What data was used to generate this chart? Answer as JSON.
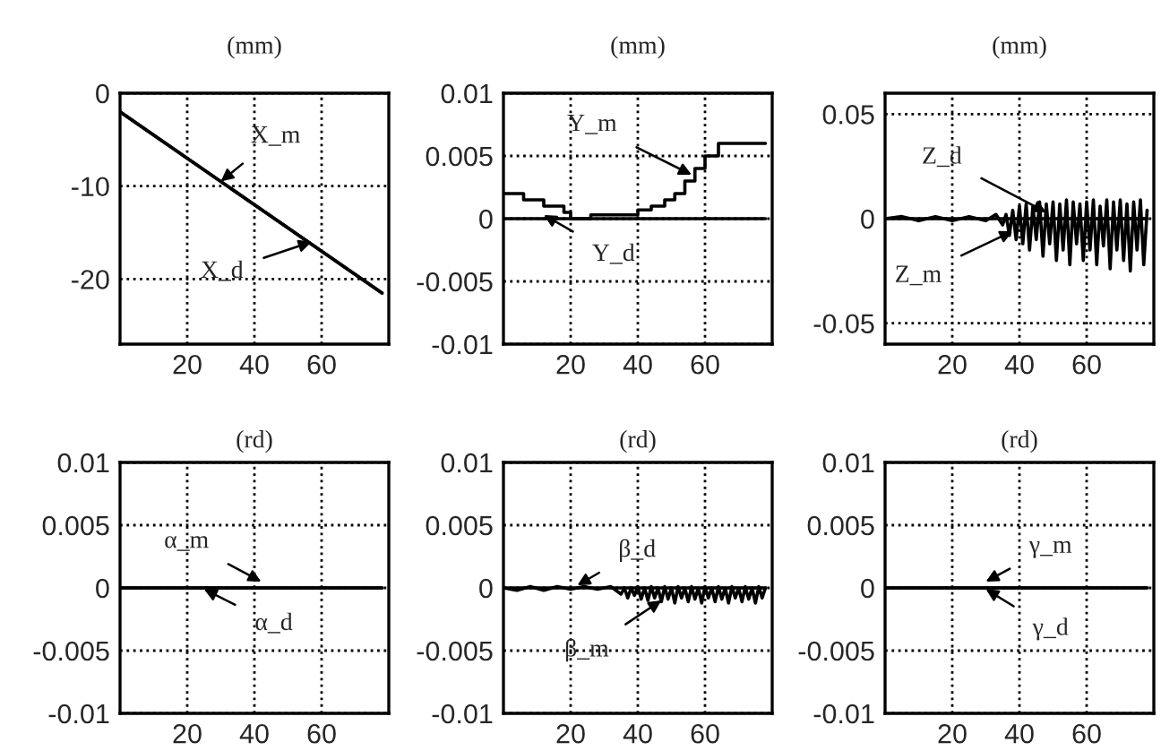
{
  "chart_data": [
    {
      "type": "line",
      "title": "(mm)",
      "xlim": [
        0,
        80
      ],
      "xticks": [
        20,
        40,
        60
      ],
      "ylim": [
        -27,
        0
      ],
      "yticks": [
        0,
        -10,
        -20
      ],
      "grid": true,
      "series": [
        {
          "color": "#000000",
          "x": [
            0,
            78
          ],
          "values": [
            -2,
            -21.5
          ]
        },
        {
          "color": "#000000",
          "x": [
            0,
            78
          ],
          "values": [
            -2,
            -21.5
          ]
        }
      ],
      "annotations": [
        {
          "text": "X_m",
          "x": 30,
          "y": -9.5
        },
        {
          "text": "X_d",
          "x": 57,
          "y": -16
        }
      ]
    },
    {
      "type": "line",
      "title": "(mm)",
      "xlim": [
        0,
        80
      ],
      "xticks": [
        20,
        40,
        60
      ],
      "ylim": [
        -0.01,
        0.01
      ],
      "yticks": [
        0.01,
        0.005,
        0,
        -0.005,
        -0.01
      ],
      "grid": true,
      "series": [
        {
          "color": "#000000",
          "x": [
            0,
            6,
            6,
            12,
            12,
            18,
            18,
            20,
            20,
            26,
            26,
            40,
            40,
            44,
            44,
            48,
            48,
            51,
            51,
            54,
            54,
            57,
            57,
            60,
            60,
            64,
            64,
            78
          ],
          "values": [
            0.002,
            0.002,
            0.0015,
            0.0015,
            0.001,
            0.001,
            0.0005,
            0.0005,
            0,
            0,
            0.0003,
            0.0003,
            0.0007,
            0.0007,
            0.001,
            0.001,
            0.0015,
            0.0015,
            0.002,
            0.002,
            0.003,
            0.003,
            0.004,
            0.004,
            0.005,
            0.005,
            0.006,
            0.006
          ]
        },
        {
          "color": "#000000",
          "x": [
            0,
            78
          ],
          "values": [
            0,
            0
          ]
        }
      ],
      "annotations": [
        {
          "text": "Y_m",
          "x": 56,
          "y": 0.0035
        },
        {
          "text": "Y_d",
          "x": 12,
          "y": 0.0003
        }
      ]
    },
    {
      "type": "line",
      "title": "(mm)",
      "xlim": [
        0,
        80
      ],
      "xticks": [
        20,
        40,
        60
      ],
      "ylim": [
        -0.06,
        0.06
      ],
      "yticks": [
        0.05,
        0,
        -0.05
      ],
      "grid": true,
      "series": [
        {
          "color": "#000000",
          "x": [
            0,
            5,
            10,
            15,
            20,
            25,
            30,
            33,
            35,
            36,
            37,
            38,
            39,
            40,
            41,
            42,
            43,
            44,
            45,
            46,
            47,
            48,
            49,
            50,
            51,
            52,
            53,
            54,
            55,
            56,
            57,
            58,
            59,
            60,
            61,
            62,
            63,
            64,
            65,
            66,
            67,
            68,
            69,
            70,
            71,
            72,
            73,
            74,
            75,
            76,
            77,
            78
          ],
          "values": [
            0,
            0.001,
            -0.001,
            0.001,
            -0.001,
            0.001,
            -0.001,
            0.002,
            -0.003,
            0.002,
            -0.008,
            0.004,
            -0.01,
            0.006,
            -0.012,
            0.007,
            -0.015,
            0.006,
            -0.01,
            0.008,
            -0.018,
            0.007,
            -0.012,
            0.008,
            -0.02,
            0.007,
            -0.015,
            0.009,
            -0.022,
            0.008,
            -0.012,
            0.007,
            -0.02,
            0.008,
            -0.015,
            0.009,
            -0.022,
            0.006,
            -0.013,
            0.009,
            -0.024,
            0.008,
            -0.015,
            0.009,
            -0.02,
            0.007,
            -0.025,
            0.008,
            -0.015,
            0.009,
            -0.022,
            0.004
          ]
        },
        {
          "color": "#000000",
          "x": [
            0,
            78
          ],
          "values": [
            0,
            0
          ]
        }
      ],
      "annotations": [
        {
          "text": "Z_d",
          "x": 48,
          "y": 0.003
        },
        {
          "text": "Z_m",
          "x": 38,
          "y": -0.006
        }
      ]
    },
    {
      "type": "line",
      "title": "(rd)",
      "xlim": [
        0,
        80
      ],
      "xticks": [
        20,
        40,
        60
      ],
      "ylim": [
        -0.01,
        0.01
      ],
      "yticks": [
        0.01,
        0.005,
        0,
        -0.005,
        -0.01
      ],
      "grid": true,
      "series": [
        {
          "color": "#000000",
          "x": [
            0,
            78
          ],
          "values": [
            0,
            0
          ]
        },
        {
          "color": "#000000",
          "x": [
            0,
            78
          ],
          "values": [
            0,
            0
          ]
        }
      ],
      "annotations": [
        {
          "text": "α_m",
          "x": 42,
          "y": 0.0005
        },
        {
          "text": "α_d",
          "x": 25,
          "y": -0.0001
        }
      ]
    },
    {
      "type": "line",
      "title": "(rd)",
      "xlim": [
        0,
        80
      ],
      "xticks": [
        20,
        40,
        60
      ],
      "ylim": [
        -0.01,
        0.01
      ],
      "yticks": [
        0.01,
        0.005,
        0,
        -0.005,
        -0.01
      ],
      "grid": true,
      "series": [
        {
          "color": "#000000",
          "x": [
            0,
            4,
            8,
            12,
            16,
            20,
            24,
            28,
            32,
            35,
            36,
            37,
            38,
            39,
            40,
            41,
            42,
            43,
            44,
            45,
            46,
            47,
            48,
            49,
            50,
            51,
            52,
            53,
            54,
            55,
            56,
            57,
            58,
            59,
            60,
            61,
            62,
            63,
            64,
            65,
            66,
            67,
            68,
            69,
            70,
            71,
            72,
            73,
            74,
            75,
            76,
            77,
            78
          ],
          "values": [
            0,
            -0.0002,
            0.0001,
            -0.0002,
            0.0001,
            -0.0001,
            0.0001,
            -0.0001,
            0.0001,
            -0.0005,
            0,
            -0.0008,
            0,
            -0.0006,
            0.0001,
            -0.0009,
            0,
            -0.001,
            0.0001,
            -0.0008,
            0,
            -0.0011,
            0.0001,
            -0.0009,
            0,
            -0.0012,
            0.0001,
            -0.0008,
            0,
            -0.0011,
            0.0001,
            -0.0009,
            0,
            -0.0012,
            0.0001,
            -0.0008,
            0,
            -0.0011,
            0.0001,
            -0.0009,
            0,
            -0.0012,
            0.0001,
            -0.0008,
            0,
            -0.0011,
            0.0001,
            -0.0009,
            0,
            -0.0012,
            0.0001,
            -0.0008,
            0
          ]
        },
        {
          "color": "#000000",
          "x": [
            0,
            78
          ],
          "values": [
            0,
            0
          ]
        }
      ],
      "annotations": [
        {
          "text": "β_d",
          "x": 22,
          "y": 0.0002
        },
        {
          "text": "β_m",
          "x": 47,
          "y": -0.001
        }
      ]
    },
    {
      "type": "line",
      "title": "(rd)",
      "xlim": [
        0,
        80
      ],
      "xticks": [
        20,
        40,
        60
      ],
      "ylim": [
        -0.01,
        0.01
      ],
      "yticks": [
        0.01,
        0.005,
        0,
        -0.005,
        -0.01
      ],
      "grid": true,
      "series": [
        {
          "color": "#000000",
          "x": [
            0,
            78
          ],
          "values": [
            0,
            0
          ]
        },
        {
          "color": "#000000",
          "x": [
            0,
            78
          ],
          "values": [
            0,
            0
          ]
        }
      ],
      "annotations": [
        {
          "text": "γ_m",
          "x": 30,
          "y": 0.0005
        },
        {
          "text": "γ_d",
          "x": 30,
          "y": -0.0001
        }
      ]
    }
  ]
}
